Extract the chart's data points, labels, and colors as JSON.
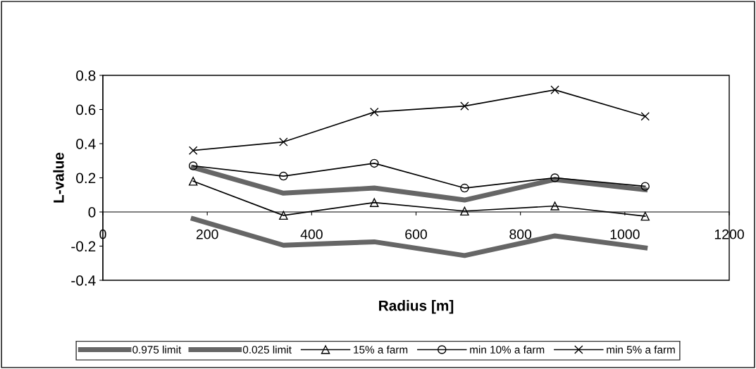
{
  "chart_data": {
    "type": "line",
    "xlabel": "Radius [m]",
    "ylabel": "L-value",
    "x": [
      173,
      346,
      520,
      693,
      866,
      1039
    ],
    "xlim": [
      0,
      1200
    ],
    "xticks": [
      0,
      200,
      400,
      600,
      800,
      1000,
      1200
    ],
    "ylim": [
      -0.4,
      0.8
    ],
    "yticks": [
      -0.4,
      -0.2,
      0,
      0.2,
      0.4,
      0.6,
      0.8
    ],
    "grid": false,
    "legend": "bottom",
    "series": [
      {
        "name": "0.975 limit",
        "color": "#666666",
        "marker": "none",
        "values": [
          0.26,
          0.11,
          0.14,
          0.07,
          0.19,
          0.13
        ]
      },
      {
        "name": "0.025 limit",
        "color": "#666666",
        "marker": "none",
        "values": [
          -0.04,
          -0.195,
          -0.175,
          -0.255,
          -0.14,
          -0.21
        ]
      },
      {
        "name": "15% a farm",
        "color": "#000000",
        "marker": "triangle",
        "values": [
          0.18,
          -0.02,
          0.055,
          0.005,
          0.035,
          -0.025
        ]
      },
      {
        "name": "min 10% a farm",
        "color": "#000000",
        "marker": "circle",
        "values": [
          0.27,
          0.21,
          0.285,
          0.14,
          0.2,
          0.15
        ]
      },
      {
        "name": "min 5% a farm",
        "color": "#000000",
        "marker": "cross",
        "values": [
          0.36,
          0.41,
          0.585,
          0.62,
          0.715,
          0.56
        ]
      }
    ]
  }
}
